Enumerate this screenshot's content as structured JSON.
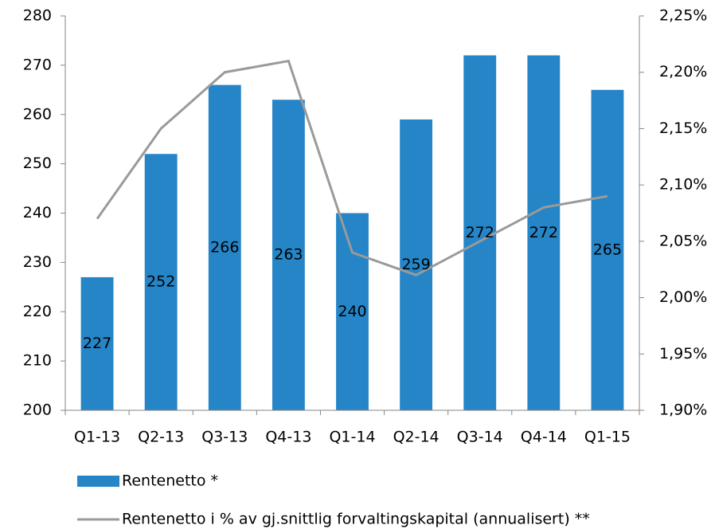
{
  "chart_data": {
    "type": "bar",
    "categories": [
      "Q1-13",
      "Q2-13",
      "Q3-13",
      "Q4-13",
      "Q1-14",
      "Q2-14",
      "Q3-14",
      "Q4-14",
      "Q1-15"
    ],
    "series": [
      {
        "name": "Rentenetto *",
        "color": "#2585c7",
        "values": [
          227,
          252,
          266,
          263,
          240,
          259,
          272,
          272,
          265
        ]
      },
      {
        "name": "Rentenetto i % av gj.snittlig forvaltingskapital (annualisert) **",
        "type": "line",
        "axis": "y2",
        "color": "#9a9a9a",
        "values": [
          2.07,
          2.15,
          2.2,
          2.21,
          2.04,
          2.02,
          2.05,
          2.08,
          2.09
        ]
      }
    ],
    "ylim": [
      200,
      280
    ],
    "yticks": [
      200,
      210,
      220,
      230,
      240,
      250,
      260,
      270,
      280
    ],
    "y2lim": [
      1.9,
      2.25
    ],
    "y2ticks": [
      {
        "value": 1.9,
        "label": "1,90%"
      },
      {
        "value": 1.95,
        "label": "1,95%"
      },
      {
        "value": 2.0,
        "label": "2,00%"
      },
      {
        "value": 2.05,
        "label": "2,05%"
      },
      {
        "value": 2.1,
        "label": "2,10%"
      },
      {
        "value": 2.15,
        "label": "2,15%"
      },
      {
        "value": 2.2,
        "label": "2,20%"
      },
      {
        "value": 2.25,
        "label": "2,25%"
      }
    ],
    "grid": false,
    "data_labels": true,
    "legend": "bottom"
  }
}
